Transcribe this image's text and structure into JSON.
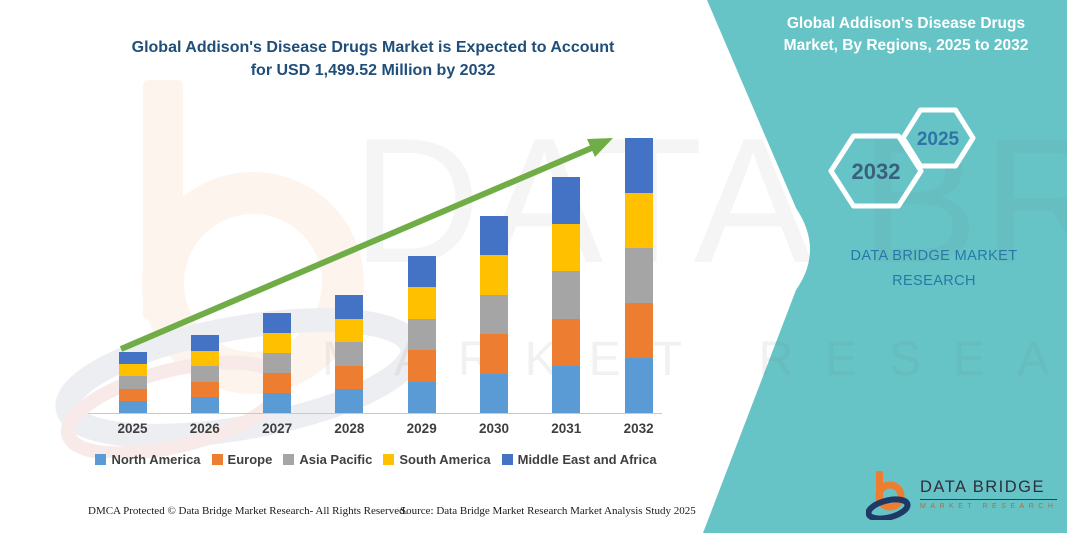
{
  "header": {
    "title_line1": "Global Addison's Disease Drugs Market is Expected to Account",
    "title_line2": "for USD 1,499.52 Million by 2032"
  },
  "panel": {
    "title_line1": "Global Addison's Disease Drugs",
    "title_line2": "Market, By Regions, 2025 to 2032",
    "hexagon_back_year": "2032",
    "hexagon_front_year": "2025",
    "brand_text": "DATA BRIDGE MARKET RESEARCH",
    "colors": {
      "background": "#66C4C7",
      "title": "#FFFFFF",
      "hexagon_outline": "#FFFFFF",
      "hexagon_back_year_color": "#39617D",
      "hexagon_front_year_color": "#2F74A3",
      "brand_text_color": "#2878A8"
    }
  },
  "chart_data": {
    "type": "bar",
    "stacked": true,
    "title": "Global Addison's Disease Drugs Market is Expected to Account for USD 1,499.52 Million by 2032",
    "units": "USD Million",
    "categories": [
      "2025",
      "2026",
      "2027",
      "2028",
      "2029",
      "2030",
      "2031",
      "2032"
    ],
    "series": [
      {
        "name": "North America",
        "color": "#5B9BD5",
        "values": [
          66.6,
          85.0,
          109.0,
          128.7,
          171.2,
          214.8,
          257.4,
          299.9
        ]
      },
      {
        "name": "Europe",
        "color": "#ED7D31",
        "values": [
          66.6,
          85.0,
          109.0,
          128.7,
          171.2,
          214.8,
          257.4,
          299.9
        ]
      },
      {
        "name": "Asia Pacific",
        "color": "#A5A5A5",
        "values": [
          66.6,
          85.0,
          109.0,
          128.7,
          171.2,
          214.8,
          257.4,
          299.9
        ]
      },
      {
        "name": "South America",
        "color": "#FFC000",
        "values": [
          66.6,
          85.0,
          109.0,
          128.7,
          171.2,
          214.8,
          257.4,
          299.9
        ]
      },
      {
        "name": "Middle East and Africa",
        "color": "#4472C4",
        "values": [
          66.6,
          85.0,
          109.0,
          128.7,
          171.2,
          214.8,
          257.4,
          299.9
        ]
      }
    ],
    "totals": [
      333,
      425,
      545,
      643.5,
      856,
      1074,
      1287,
      1499.52
    ],
    "labeled_value_2032": "USD 1,499.52 Million",
    "ylim": [
      0,
      1600
    ],
    "grid": false,
    "y_axis_visible": false,
    "legend_position": "bottom",
    "trend_arrow": true,
    "trend_arrow_color": "#70AD47"
  },
  "watermark": {
    "big_text": "DATA BRIDGE",
    "row_text": "MARKET RESEARCH"
  },
  "footer": {
    "dmca": "DMCA Protected © Data Bridge Market Research-  All Rights Reserved.",
    "source": "Source: Data Bridge Market Research  Market Analysis Study 2025"
  },
  "logo": {
    "name": "DATA BRIDGE",
    "subtitle": "MARKET RESEARCH"
  }
}
